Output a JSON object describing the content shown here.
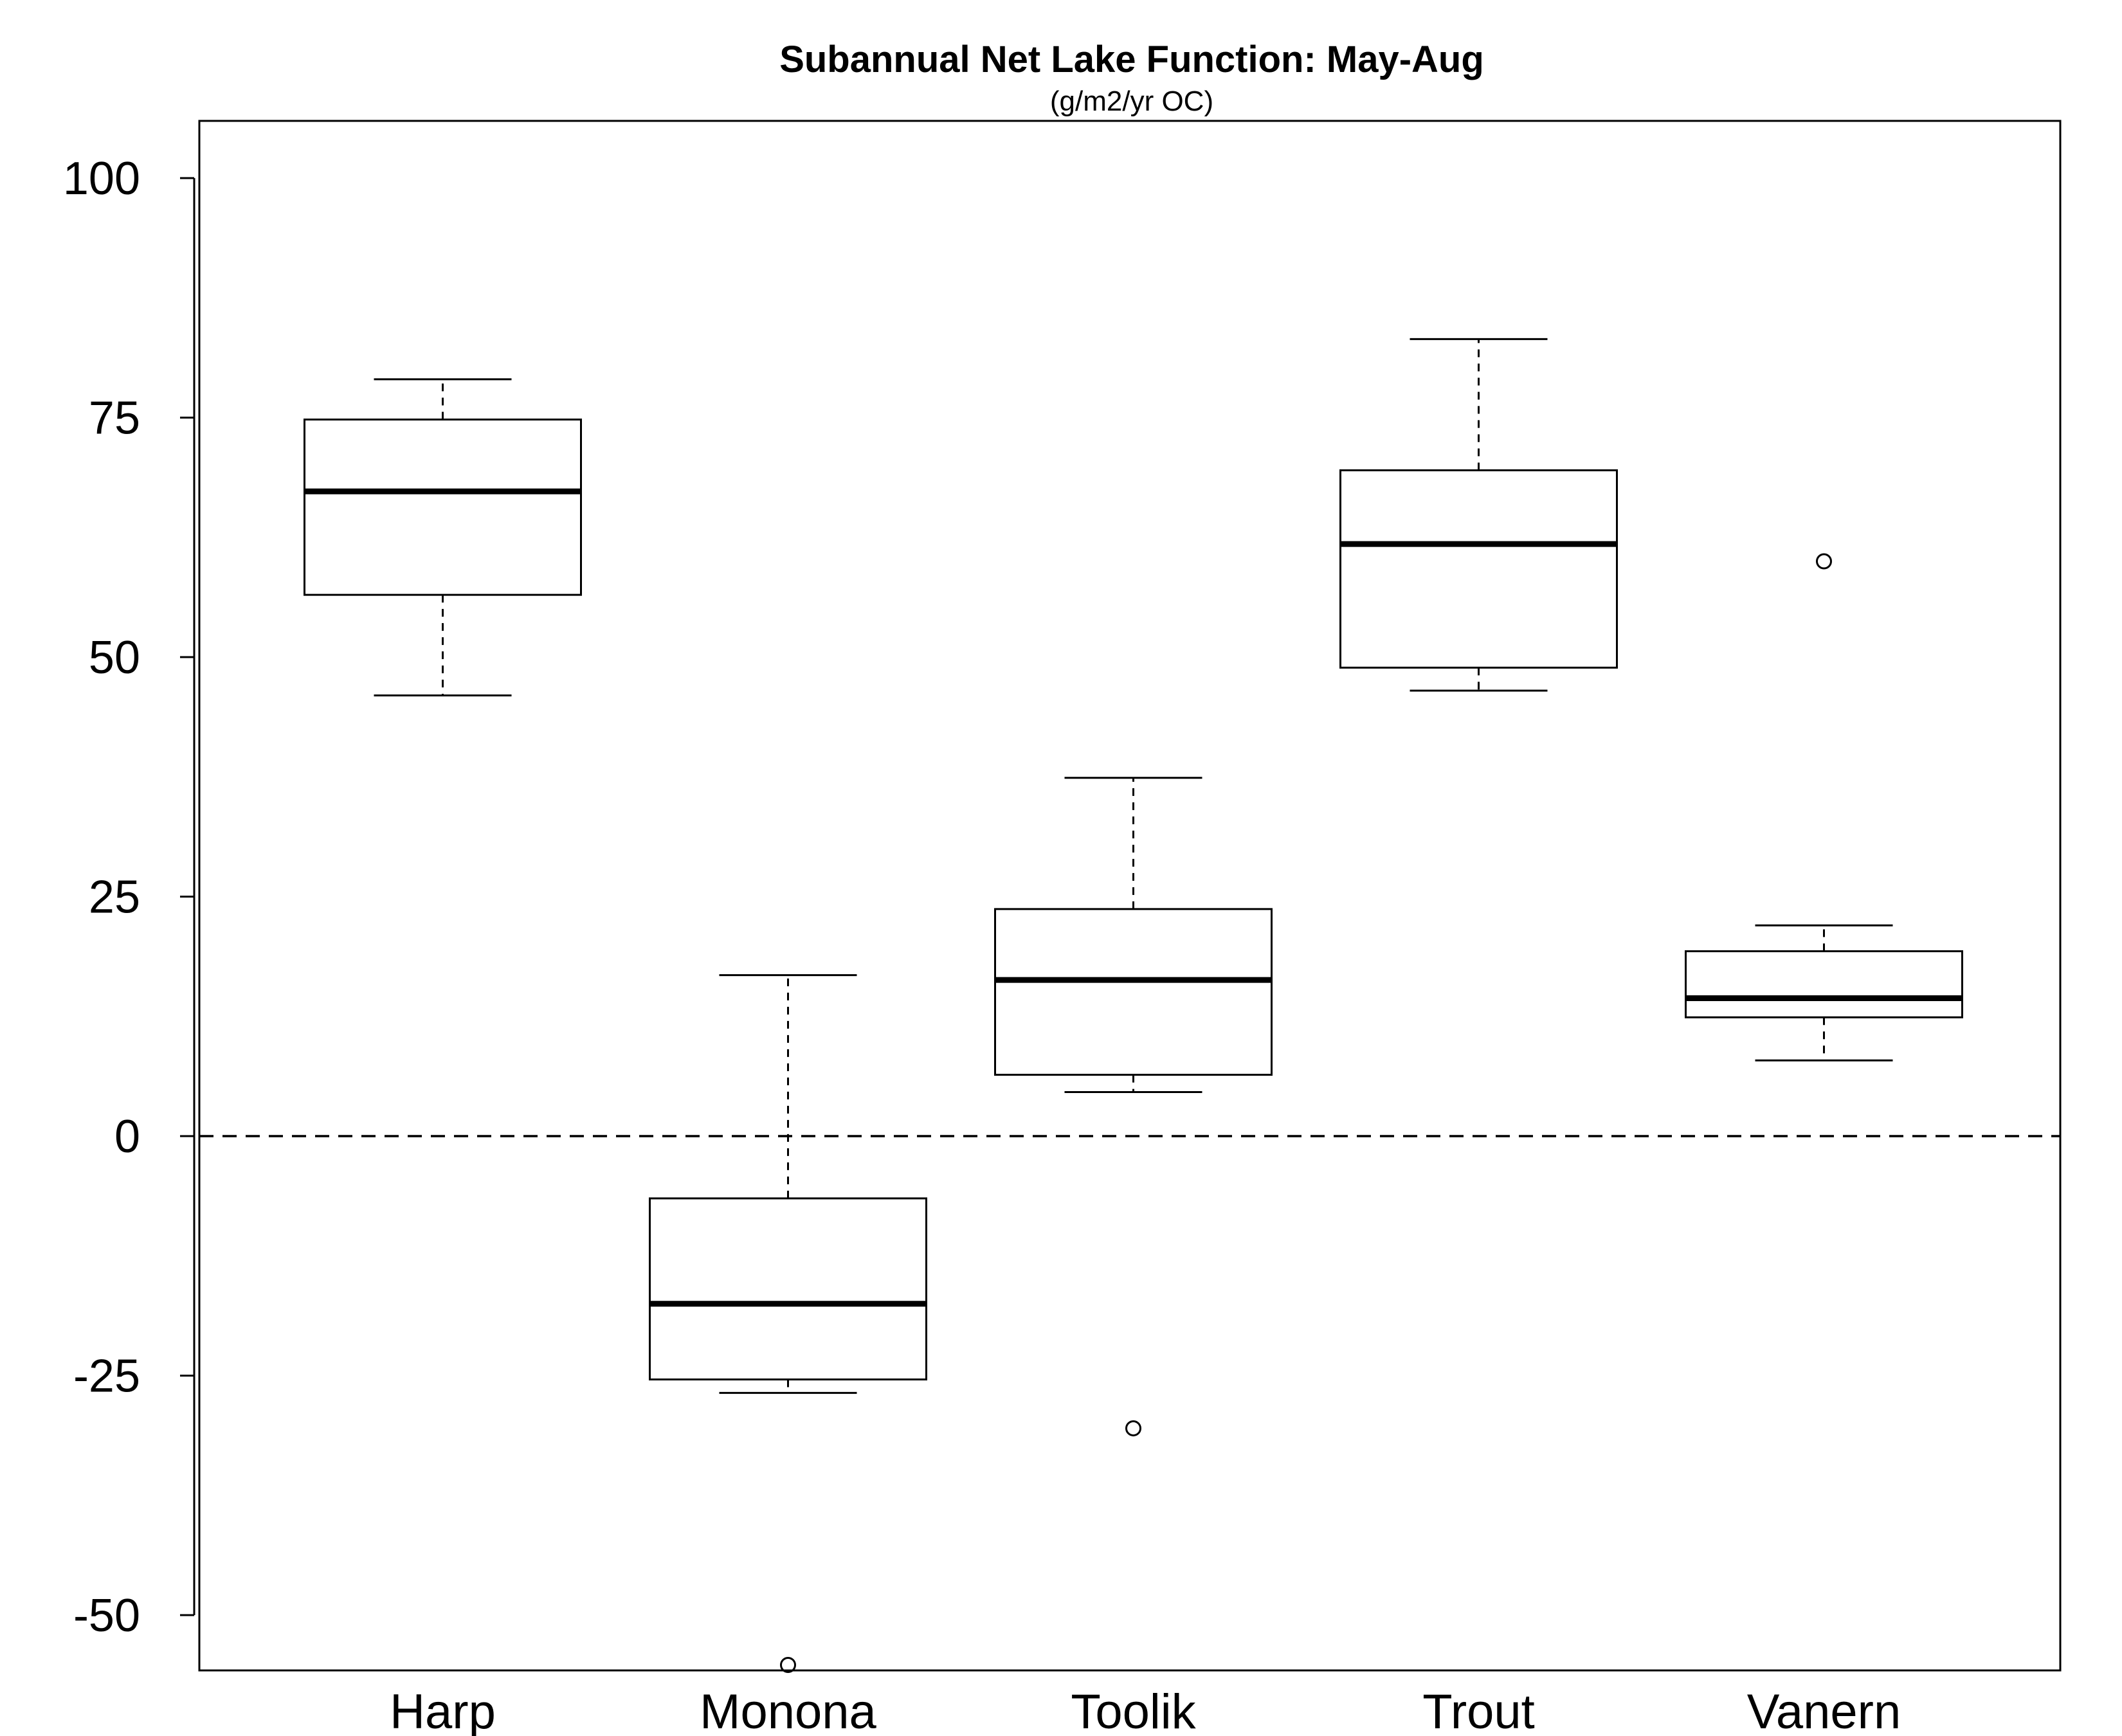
{
  "chart_data": {
    "type": "boxplot",
    "title": "Subannual Net Lake Function: May-Aug",
    "subtitle": "(g/m2/yr OC)",
    "xlabel": "",
    "ylabel": "",
    "ylim": [
      -56,
      106
    ],
    "yticks": [
      100,
      75,
      50,
      25,
      0,
      -25,
      -50
    ],
    "ytick_labels": [
      "100",
      "75",
      "50",
      "25",
      "0",
      "-25",
      "-50"
    ],
    "reference_line": {
      "y": 0,
      "style": "dashed"
    },
    "categories": [
      "Harp",
      "Monona",
      "Toolik",
      "Trout",
      "Vanern"
    ],
    "boxes": [
      {
        "category": "Harp",
        "whisker_low": 46.0,
        "q1": 56.5,
        "median": 67.3,
        "q3": 74.8,
        "whisker_high": 79.0,
        "outliers": []
      },
      {
        "category": "Monona",
        "whisker_low": -26.8,
        "q1": -25.4,
        "median": -17.5,
        "q3": -6.5,
        "whisker_high": 16.8,
        "outliers": [
          -55.2
        ]
      },
      {
        "category": "Toolik",
        "whisker_low": 4.6,
        "q1": 6.4,
        "median": 16.3,
        "q3": 23.7,
        "whisker_high": 37.4,
        "outliers": [
          -30.5
        ]
      },
      {
        "category": "Trout",
        "whisker_low": 46.5,
        "q1": 48.9,
        "median": 61.8,
        "q3": 69.5,
        "whisker_high": 83.2,
        "outliers": []
      },
      {
        "category": "Vanern",
        "whisker_low": 7.9,
        "q1": 12.4,
        "median": 14.4,
        "q3": 19.3,
        "whisker_high": 22.0,
        "outliers": [
          60.0
        ]
      }
    ],
    "grid": false,
    "legend": "none"
  }
}
